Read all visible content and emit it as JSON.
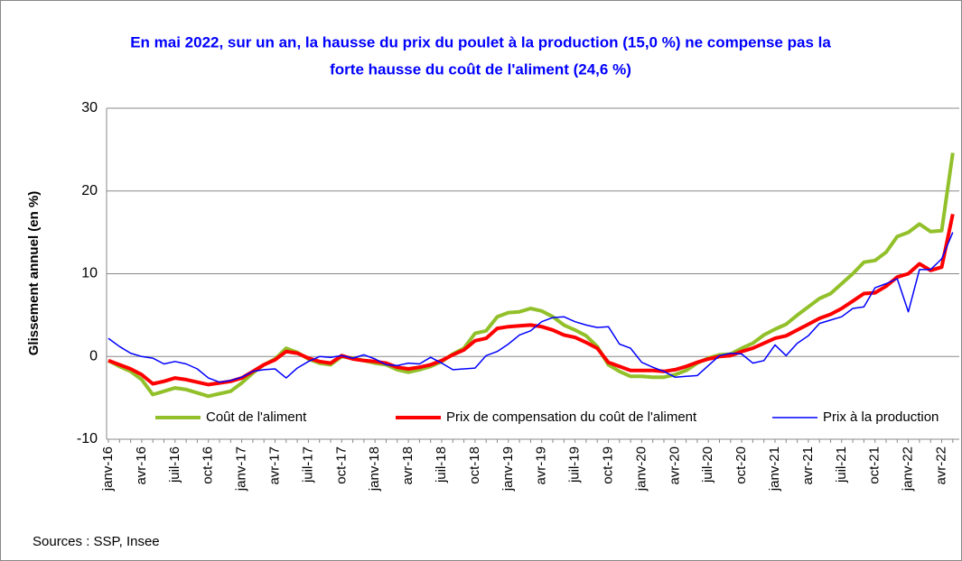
{
  "chart_data": {
    "type": "line",
    "title": "En mai 2022, sur un an, la hausse du prix du poulet à la production (15,0 %) ne compense pas la",
    "title_line2": "forte hausse du coût de l'aliment (24,6 %)",
    "ylabel": "Glissement annuel (en %)",
    "source": "Sources : SSP, Insee",
    "categories": [
      "janv-16",
      null,
      null,
      "avr-16",
      null,
      null,
      "juil-16",
      null,
      null,
      "oct-16",
      null,
      null,
      "janv-17",
      null,
      null,
      "avr-17",
      null,
      null,
      "juil-17",
      null,
      null,
      "oct-17",
      null,
      null,
      "janv-18",
      null,
      null,
      "avr-18",
      null,
      null,
      "juil-18",
      null,
      null,
      "oct-18",
      null,
      null,
      "janv-19",
      null,
      null,
      "avr-19",
      null,
      null,
      "juil-19",
      null,
      null,
      "oct-19",
      null,
      null,
      "janv-20",
      null,
      null,
      "avr-20",
      null,
      null,
      "juil-20",
      null,
      null,
      "oct-20",
      null,
      null,
      "janv-21",
      null,
      null,
      "avr-21",
      null,
      null,
      "juil-21",
      null,
      null,
      "oct-21",
      null,
      null,
      "janv-22",
      null,
      null,
      "avr-22",
      null
    ],
    "series": [
      {
        "name": "Coût de l'aliment",
        "color": "#92c02a",
        "width": 4,
        "values": [
          -0.5,
          -1.2,
          -1.8,
          -2.8,
          -4.6,
          -4.2,
          -3.8,
          -4.0,
          -4.4,
          -4.8,
          -4.5,
          -4.2,
          -3.2,
          -2.0,
          -1.0,
          -0.3,
          1.0,
          0.5,
          -0.3,
          -0.8,
          -1.0,
          0.0,
          -0.2,
          -0.5,
          -0.8,
          -1.0,
          -1.6,
          -1.9,
          -1.6,
          -1.2,
          -0.6,
          0.3,
          1.0,
          2.8,
          3.1,
          4.8,
          5.3,
          5.4,
          5.8,
          5.5,
          4.8,
          3.8,
          3.2,
          2.5,
          1.2,
          -1.0,
          -1.8,
          -2.4,
          -2.4,
          -2.5,
          -2.5,
          -2.2,
          -1.7,
          -0.8,
          -0.2,
          0.2,
          0.3,
          1.0,
          1.6,
          2.6,
          3.3,
          3.9,
          5.0,
          6.0,
          7.0,
          7.6,
          8.8,
          10.0,
          11.4,
          11.6,
          12.6,
          14.5,
          15.0,
          16.0,
          15.1,
          15.2,
          24.6
        ]
      },
      {
        "name": "Prix de compensation du coût de l'aliment",
        "color": "#ff0000",
        "width": 4,
        "values": [
          -0.5,
          -1.0,
          -1.5,
          -2.2,
          -3.3,
          -3.0,
          -2.6,
          -2.8,
          -3.1,
          -3.4,
          -3.2,
          -3.0,
          -2.6,
          -1.8,
          -1.0,
          -0.4,
          0.6,
          0.4,
          -0.2,
          -0.6,
          -0.8,
          0.1,
          -0.3,
          -0.5,
          -0.6,
          -0.8,
          -1.3,
          -1.5,
          -1.3,
          -1.0,
          -0.5,
          0.2,
          0.8,
          1.9,
          2.2,
          3.4,
          3.6,
          3.7,
          3.8,
          3.6,
          3.2,
          2.6,
          2.3,
          1.7,
          1.0,
          -0.7,
          -1.2,
          -1.7,
          -1.7,
          -1.7,
          -1.8,
          -1.6,
          -1.2,
          -0.7,
          -0.3,
          0.0,
          0.1,
          0.6,
          1.0,
          1.6,
          2.2,
          2.5,
          3.2,
          3.9,
          4.6,
          5.1,
          5.8,
          6.7,
          7.6,
          7.7,
          8.5,
          9.6,
          10.0,
          11.2,
          10.4,
          10.8,
          17.2
        ]
      },
      {
        "name": "Prix à la production",
        "color": "#0000ff",
        "width": 1.5,
        "values": [
          2.2,
          1.2,
          0.4,
          0.0,
          -0.2,
          -0.9,
          -0.6,
          -0.9,
          -1.5,
          -2.6,
          -3.1,
          -2.9,
          -2.5,
          -1.8,
          -1.6,
          -1.5,
          -2.6,
          -1.4,
          -0.6,
          0.0,
          -0.1,
          0.1,
          -0.2,
          0.2,
          -0.3,
          -1.0,
          -1.1,
          -0.8,
          -0.9,
          -0.1,
          -0.8,
          -1.6,
          -1.5,
          -1.4,
          0.1,
          0.6,
          1.5,
          2.6,
          3.1,
          4.2,
          4.7,
          4.8,
          4.2,
          3.8,
          3.5,
          3.6,
          1.5,
          1.0,
          -0.7,
          -1.3,
          -1.8,
          -2.5,
          -2.4,
          -2.3,
          -1.1,
          0.1,
          0.4,
          0.3,
          -0.8,
          -0.5,
          1.4,
          0.1,
          1.6,
          2.5,
          4.0,
          4.4,
          4.8,
          5.8,
          6.0,
          8.3,
          8.8,
          9.4,
          5.4,
          10.5,
          10.5,
          11.8,
          15.0
        ]
      }
    ],
    "ylim": [
      -10,
      30
    ],
    "yticks": [
      -10,
      0,
      10,
      20,
      30
    ],
    "grid": true
  }
}
